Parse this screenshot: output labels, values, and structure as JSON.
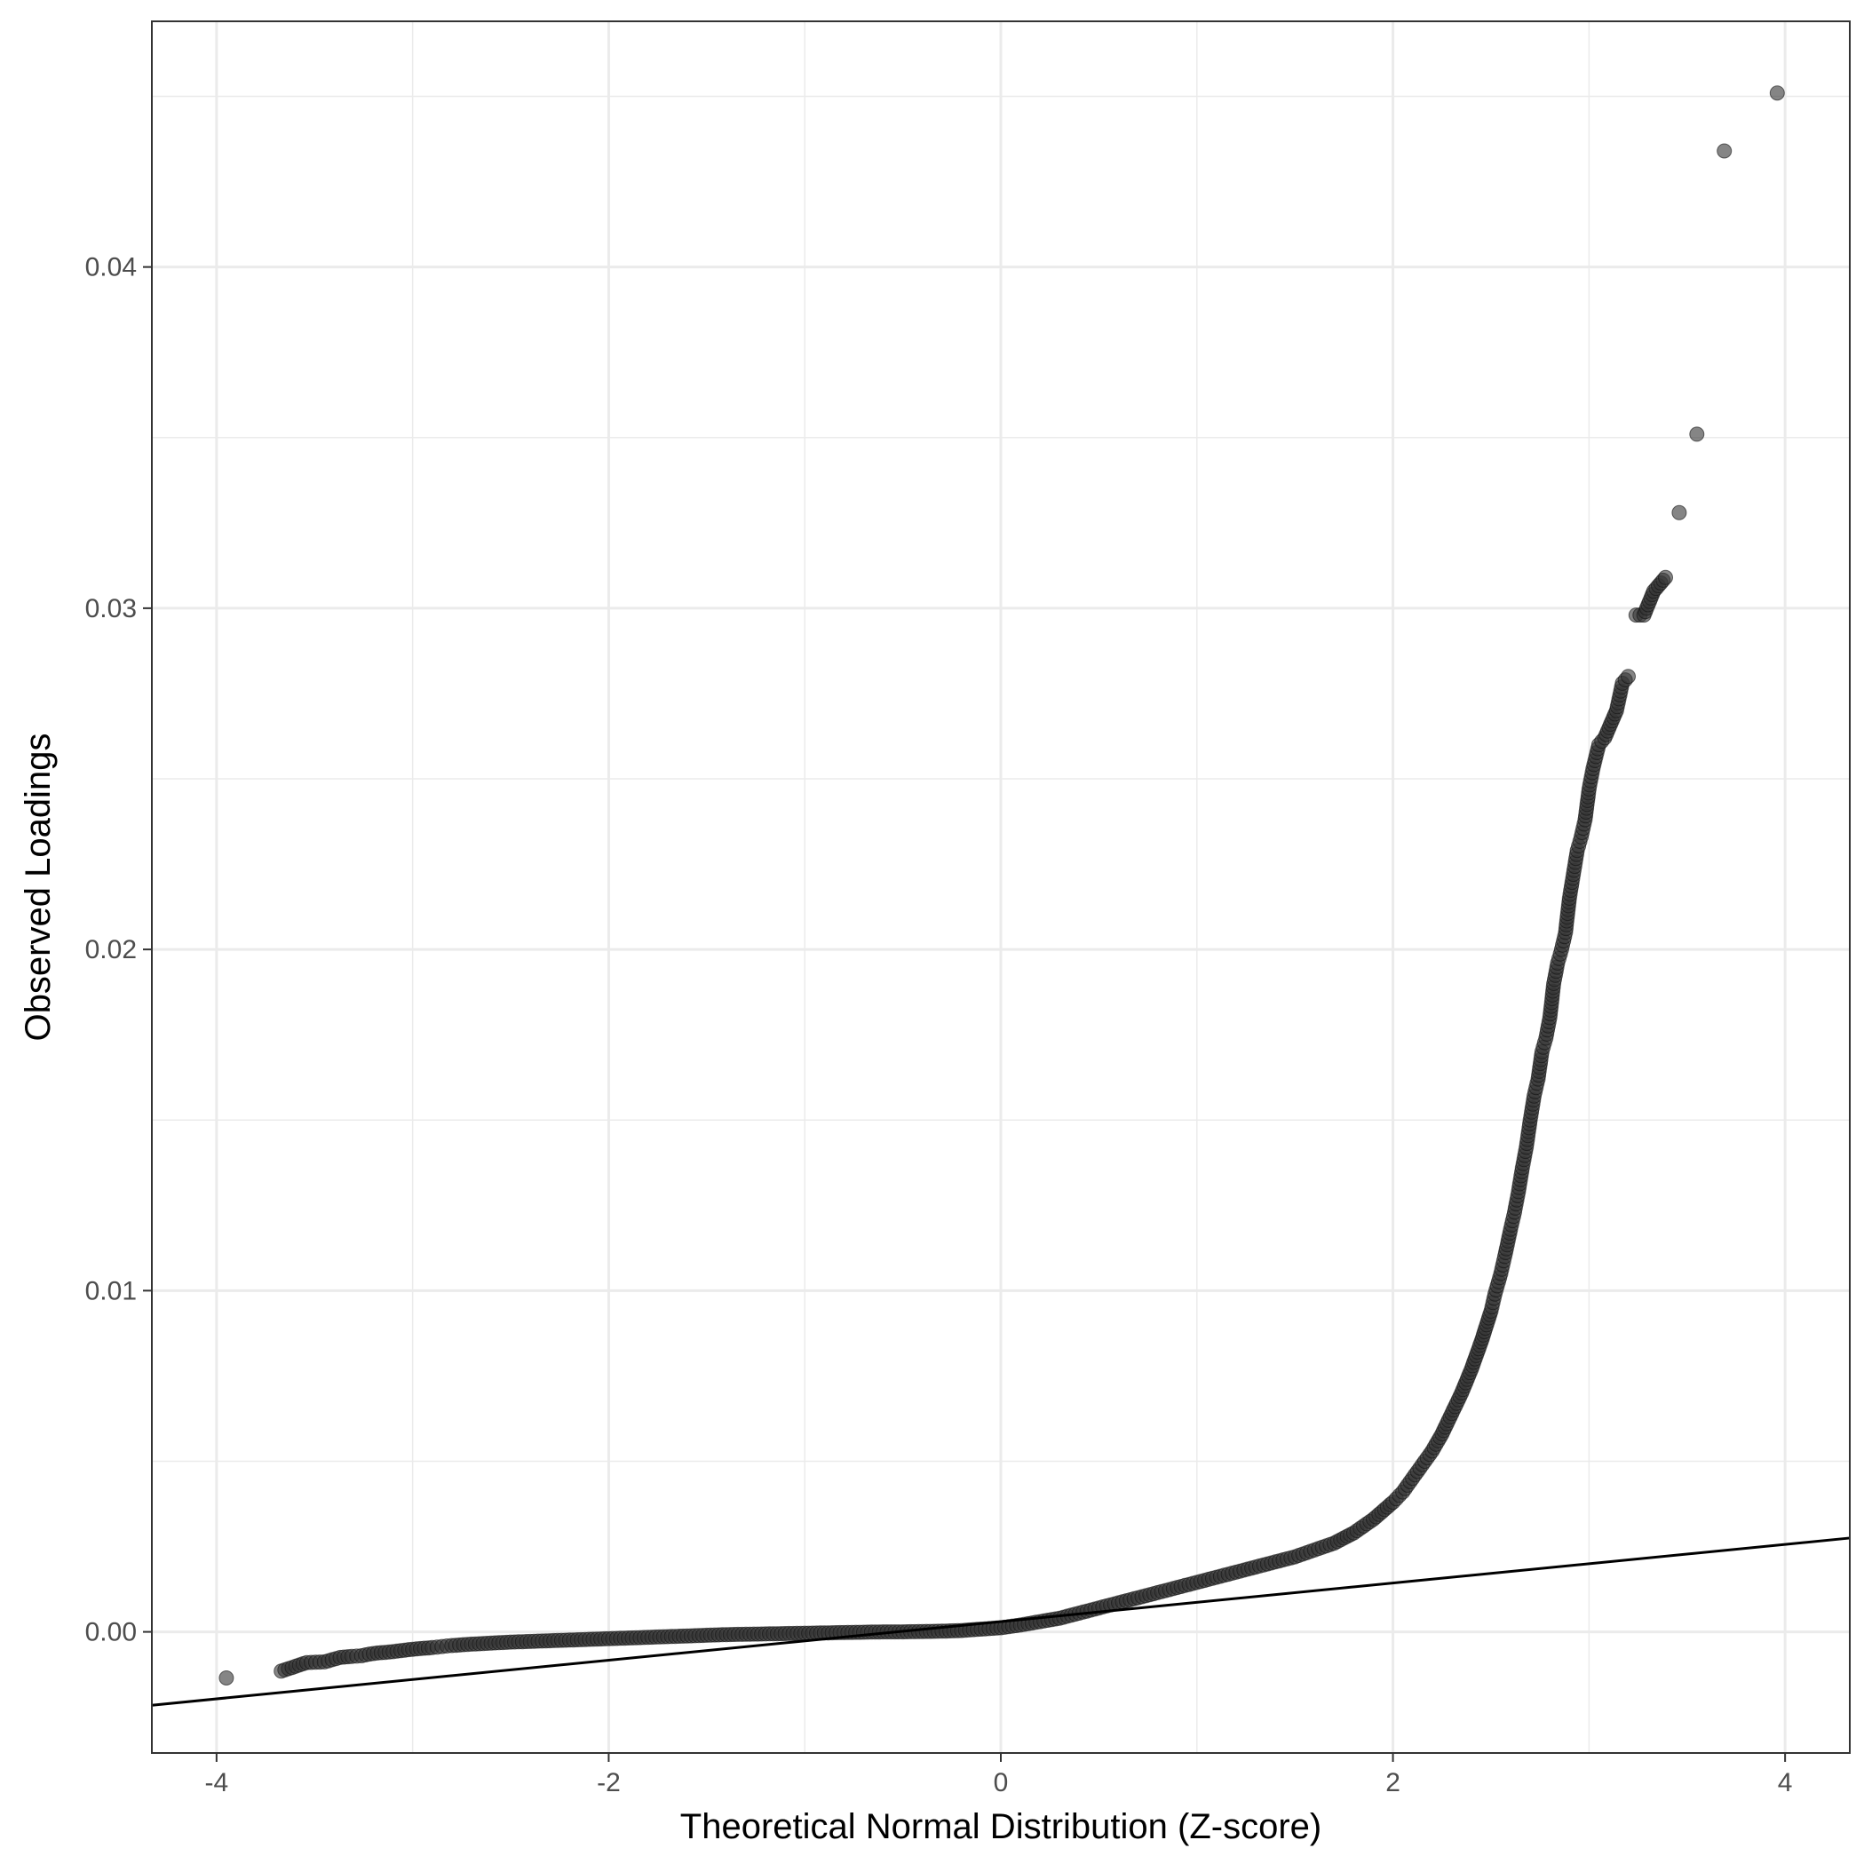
{
  "chart_data": {
    "type": "scatter",
    "title": "",
    "xlabel": "Theoretical Normal Distribution (Z-score)",
    "ylabel": "Observed Loadings",
    "xlim": [
      -4.33,
      4.33
    ],
    "ylim": [
      -0.00355,
      0.0472
    ],
    "x_ticks": [
      -4,
      -2,
      0,
      2,
      4
    ],
    "x_tick_labels": [
      "-4",
      "-2",
      "0",
      "2",
      "4"
    ],
    "y_ticks": [
      0.0,
      0.01,
      0.02,
      0.03,
      0.04
    ],
    "y_tick_labels": [
      "0.00",
      "0.01",
      "0.02",
      "0.03",
      "0.04"
    ],
    "grid": true,
    "legend": "none",
    "point_color": "#333333",
    "point_opacity": 0.6,
    "reference_line": {
      "x": [
        -4.33,
        4.33
      ],
      "y": [
        -0.00215,
        0.00275
      ],
      "color": "#000000"
    },
    "series": [
      {
        "x": [
          -3.95,
          -3.67,
          -3.54,
          -3.45,
          -3.37,
          -3.31,
          -3.26,
          -3.22,
          -3.18,
          -3.14,
          -3.1,
          -3.06,
          -3.02,
          -2.98,
          -2.94,
          -2.9,
          -2.85,
          -2.8,
          -2.7,
          -2.6,
          -2.5,
          -2.4,
          -2.3,
          -2.2,
          -2.1,
          -2.0,
          -1.9,
          -1.8,
          -1.7,
          -1.6,
          -1.5,
          -1.4,
          -1.3,
          -1.2,
          -1.1,
          -1.0,
          -0.9,
          -0.8,
          -0.7,
          -0.6,
          -0.5,
          -0.4,
          -0.3,
          -0.2,
          -0.1,
          0.0,
          0.1,
          0.2,
          0.3,
          0.4,
          0.5,
          0.6,
          0.7,
          0.8,
          0.9,
          1.0,
          1.1,
          1.2,
          1.3,
          1.4,
          1.5,
          1.6,
          1.7,
          1.8,
          1.9,
          2.0,
          2.05,
          2.1,
          2.15,
          2.2,
          2.25,
          2.3,
          2.35,
          2.4,
          2.45,
          2.5,
          2.52,
          2.55,
          2.57,
          2.6,
          2.62,
          2.64,
          2.66,
          2.68,
          2.7,
          2.72,
          2.74,
          2.76,
          2.78,
          2.8,
          2.82,
          2.84,
          2.86,
          2.88,
          2.9,
          2.92,
          2.94,
          2.96,
          2.98,
          3.0,
          3.02,
          3.05,
          3.08,
          3.11,
          3.14,
          3.17,
          3.2,
          3.24,
          3.28,
          3.33,
          3.39,
          3.46,
          3.55,
          3.69,
          3.96
        ],
        "y": [
          -0.00135,
          -0.00115,
          -0.0009,
          -0.00088,
          -0.00075,
          -0.00072,
          -0.0007,
          -0.00065,
          -0.00062,
          -0.0006,
          -0.00058,
          -0.00055,
          -0.00052,
          -0.0005,
          -0.00048,
          -0.00046,
          -0.00043,
          -0.0004,
          -0.00036,
          -0.00033,
          -0.0003,
          -0.00028,
          -0.00026,
          -0.00024,
          -0.00022,
          -0.0002,
          -0.00018,
          -0.00016,
          -0.00014,
          -0.00012,
          -0.0001,
          -8e-05,
          -7e-05,
          -6e-05,
          -5e-05,
          -4e-05,
          -3e-05,
          -2e-05,
          -1e-05,
          0.0,
          0.0,
          1e-05,
          2e-05,
          4e-05,
          8e-05,
          0.00012,
          0.0002,
          0.0003,
          0.0004,
          0.00055,
          0.0007,
          0.00085,
          0.001,
          0.00115,
          0.0013,
          0.00145,
          0.0016,
          0.00175,
          0.0019,
          0.00205,
          0.0022,
          0.0024,
          0.0026,
          0.0029,
          0.0033,
          0.0038,
          0.0041,
          0.0045,
          0.0049,
          0.0053,
          0.0058,
          0.0064,
          0.007,
          0.0077,
          0.0085,
          0.0094,
          0.0099,
          0.0105,
          0.011,
          0.0118,
          0.0123,
          0.0129,
          0.0136,
          0.0142,
          0.015,
          0.0157,
          0.0162,
          0.017,
          0.0174,
          0.018,
          0.019,
          0.0196,
          0.02,
          0.0205,
          0.0215,
          0.0222,
          0.0229,
          0.0233,
          0.0238,
          0.0247,
          0.0253,
          0.026,
          0.0262,
          0.0266,
          0.027,
          0.0278,
          0.028,
          0.0298,
          0.0298,
          0.0305,
          0.0309,
          0.0328,
          0.0351,
          0.0434,
          0.0451
        ]
      }
    ]
  }
}
